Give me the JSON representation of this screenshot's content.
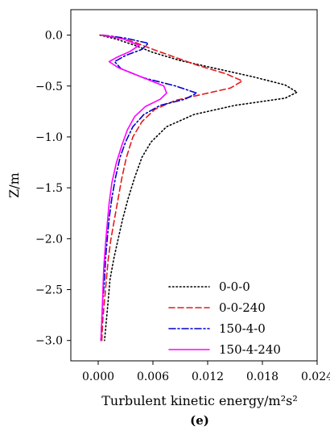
{
  "chart_data": {
    "type": "line",
    "xlabel": "Turbulent kinetic energy/m²s²",
    "ylabel": "Z/m",
    "panel_label": "(e)",
    "xlim": [
      -0.003,
      0.024
    ],
    "ylim": [
      -3.2,
      0.25
    ],
    "xticks": [
      0.0,
      0.006,
      0.012,
      0.018,
      0.024
    ],
    "xtick_labels": [
      "0.000",
      "0.006",
      "0.012",
      "0.018",
      "0.024"
    ],
    "yticks": [
      0.0,
      -0.5,
      -1.0,
      -1.5,
      -2.0,
      -2.5,
      -3.0
    ],
    "ytick_labels": [
      "0.0",
      "−0.5",
      "−1.0",
      "−1.5",
      "−2.0",
      "−2.5",
      "−3.0"
    ],
    "grid": false,
    "legend_position": "bottom-right",
    "series": [
      {
        "name": "0-0-0",
        "color": "#000000",
        "dash": "dotted",
        "points": [
          [
            0.0002,
            0.0
          ],
          [
            0.002,
            -0.04
          ],
          [
            0.004,
            -0.1
          ],
          [
            0.006,
            -0.17
          ],
          [
            0.009,
            -0.25
          ],
          [
            0.013,
            -0.33
          ],
          [
            0.017,
            -0.41
          ],
          [
            0.0205,
            -0.49
          ],
          [
            0.0218,
            -0.56
          ],
          [
            0.0205,
            -0.62
          ],
          [
            0.015,
            -0.69
          ],
          [
            0.0105,
            -0.78
          ],
          [
            0.0075,
            -0.9
          ],
          [
            0.0058,
            -1.05
          ],
          [
            0.0048,
            -1.2
          ],
          [
            0.004,
            -1.4
          ],
          [
            0.0033,
            -1.6
          ],
          [
            0.0027,
            -1.8
          ],
          [
            0.0022,
            -2.0
          ],
          [
            0.0017,
            -2.2
          ],
          [
            0.0013,
            -2.4
          ],
          [
            0.0011,
            -2.6
          ],
          [
            0.0009,
            -2.8
          ],
          [
            0.0007,
            -3.0
          ]
        ]
      },
      {
        "name": "0-0-240",
        "color": "#e31a1c",
        "dash": "dashed",
        "points": [
          [
            0.0003,
            0.0
          ],
          [
            0.0025,
            -0.03
          ],
          [
            0.004,
            -0.07
          ],
          [
            0.006,
            -0.14
          ],
          [
            0.0085,
            -0.22
          ],
          [
            0.011,
            -0.3
          ],
          [
            0.014,
            -0.38
          ],
          [
            0.0158,
            -0.45
          ],
          [
            0.0145,
            -0.52
          ],
          [
            0.0115,
            -0.58
          ],
          [
            0.0085,
            -0.64
          ],
          [
            0.0062,
            -0.73
          ],
          [
            0.0048,
            -0.85
          ],
          [
            0.0038,
            -1.0
          ],
          [
            0.0031,
            -1.2
          ],
          [
            0.0026,
            -1.4
          ],
          [
            0.0022,
            -1.6
          ],
          [
            0.0018,
            -1.8
          ],
          [
            0.0014,
            -2.0
          ],
          [
            0.0011,
            -2.2
          ],
          [
            0.0009,
            -2.4
          ],
          [
            0.0007,
            -2.6
          ],
          [
            0.0005,
            -2.8
          ],
          [
            0.0004,
            -3.0
          ]
        ]
      },
      {
        "name": "150-4-0",
        "color": "#0000cc",
        "dash": "dashdot",
        "points": [
          [
            0.0005,
            0.0
          ],
          [
            0.003,
            -0.03
          ],
          [
            0.0055,
            -0.08
          ],
          [
            0.0048,
            -0.14
          ],
          [
            0.003,
            -0.2
          ],
          [
            0.0018,
            -0.26
          ],
          [
            0.0025,
            -0.33
          ],
          [
            0.005,
            -0.42
          ],
          [
            0.0085,
            -0.5
          ],
          [
            0.0108,
            -0.57
          ],
          [
            0.0095,
            -0.63
          ],
          [
            0.0068,
            -0.69
          ],
          [
            0.005,
            -0.78
          ],
          [
            0.0038,
            -0.9
          ],
          [
            0.003,
            -1.05
          ],
          [
            0.0024,
            -1.2
          ],
          [
            0.0019,
            -1.4
          ],
          [
            0.0015,
            -1.6
          ],
          [
            0.0012,
            -1.8
          ],
          [
            0.001,
            -2.0
          ],
          [
            0.0008,
            -2.2
          ],
          [
            0.0007,
            -2.4
          ],
          [
            0.0005,
            -2.6
          ],
          [
            0.0004,
            -2.8
          ],
          [
            0.0003,
            -3.0
          ]
        ]
      },
      {
        "name": "150-4-240",
        "color": "#ff00ff",
        "dash": "solid",
        "points": [
          [
            0.0005,
            0.0
          ],
          [
            0.0028,
            -0.04
          ],
          [
            0.0045,
            -0.1
          ],
          [
            0.0035,
            -0.16
          ],
          [
            0.002,
            -0.22
          ],
          [
            0.0012,
            -0.26
          ],
          [
            0.0022,
            -0.32
          ],
          [
            0.005,
            -0.42
          ],
          [
            0.0072,
            -0.5
          ],
          [
            0.0075,
            -0.57
          ],
          [
            0.0068,
            -0.63
          ],
          [
            0.0052,
            -0.7
          ],
          [
            0.004,
            -0.8
          ],
          [
            0.0032,
            -0.93
          ],
          [
            0.0026,
            -1.08
          ],
          [
            0.002,
            -1.25
          ],
          [
            0.0015,
            -1.45
          ],
          [
            0.0012,
            -1.65
          ],
          [
            0.001,
            -1.85
          ],
          [
            0.0008,
            -2.05
          ],
          [
            0.0006,
            -2.3
          ],
          [
            0.0005,
            -2.55
          ],
          [
            0.0004,
            -2.8
          ],
          [
            0.0003,
            -3.0
          ]
        ]
      }
    ]
  }
}
